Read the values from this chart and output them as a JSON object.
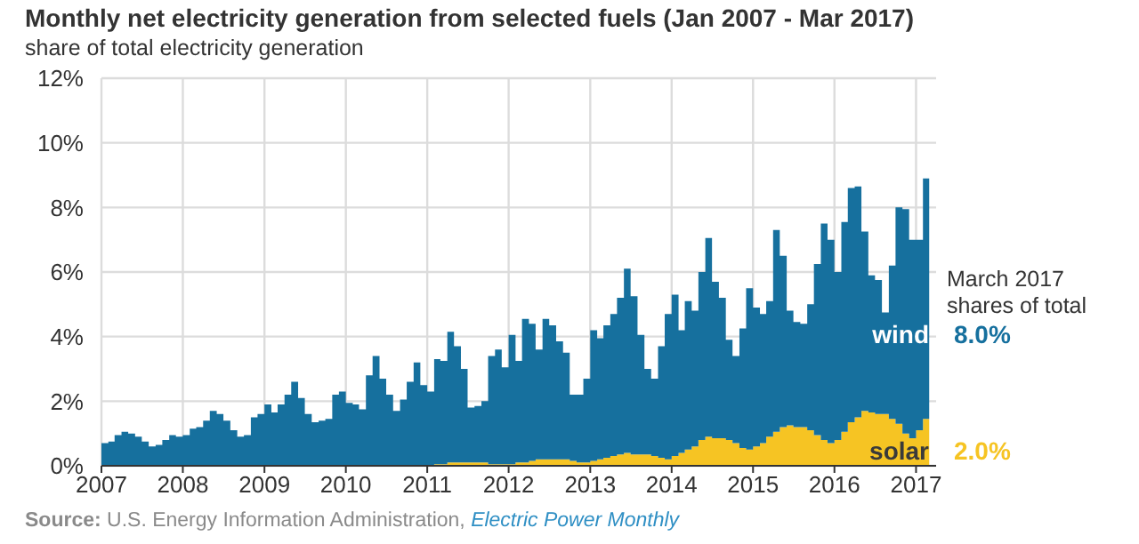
{
  "chart_data": {
    "type": "area",
    "stacked": true,
    "title": "Monthly net electricity generation from selected fuels (Jan 2007 - Mar 2017)",
    "subtitle": "share of total electricity generation",
    "x": [
      "2007-01",
      "2007-02",
      "2007-03",
      "2007-04",
      "2007-05",
      "2007-06",
      "2007-07",
      "2007-08",
      "2007-09",
      "2007-10",
      "2007-11",
      "2007-12",
      "2008-01",
      "2008-02",
      "2008-03",
      "2008-04",
      "2008-05",
      "2008-06",
      "2008-07",
      "2008-08",
      "2008-09",
      "2008-10",
      "2008-11",
      "2008-12",
      "2009-01",
      "2009-02",
      "2009-03",
      "2009-04",
      "2009-05",
      "2009-06",
      "2009-07",
      "2009-08",
      "2009-09",
      "2009-10",
      "2009-11",
      "2009-12",
      "2010-01",
      "2010-02",
      "2010-03",
      "2010-04",
      "2010-05",
      "2010-06",
      "2010-07",
      "2010-08",
      "2010-09",
      "2010-10",
      "2010-11",
      "2010-12",
      "2011-01",
      "2011-02",
      "2011-03",
      "2011-04",
      "2011-05",
      "2011-06",
      "2011-07",
      "2011-08",
      "2011-09",
      "2011-10",
      "2011-11",
      "2011-12",
      "2012-01",
      "2012-02",
      "2012-03",
      "2012-04",
      "2012-05",
      "2012-06",
      "2012-07",
      "2012-08",
      "2012-09",
      "2012-10",
      "2012-11",
      "2012-12",
      "2013-01",
      "2013-02",
      "2013-03",
      "2013-04",
      "2013-05",
      "2013-06",
      "2013-07",
      "2013-08",
      "2013-09",
      "2013-10",
      "2013-11",
      "2013-12",
      "2014-01",
      "2014-02",
      "2014-03",
      "2014-04",
      "2014-05",
      "2014-06",
      "2014-07",
      "2014-08",
      "2014-09",
      "2014-10",
      "2014-11",
      "2014-12",
      "2015-01",
      "2015-02",
      "2015-03",
      "2015-04",
      "2015-05",
      "2015-06",
      "2015-07",
      "2015-08",
      "2015-09",
      "2015-10",
      "2015-11",
      "2015-12",
      "2016-01",
      "2016-02",
      "2016-03",
      "2016-04",
      "2016-05",
      "2016-06",
      "2016-07",
      "2016-08",
      "2016-09",
      "2016-10",
      "2016-11",
      "2016-12",
      "2017-01",
      "2017-02",
      "2017-03"
    ],
    "series": [
      {
        "name": "solar",
        "color": "#f6c423",
        "values": [
          0,
          0,
          0,
          0,
          0,
          0,
          0,
          0,
          0,
          0,
          0,
          0,
          0,
          0,
          0,
          0,
          0,
          0,
          0,
          0,
          0,
          0,
          0,
          0,
          0,
          0,
          0,
          0,
          0,
          0,
          0,
          0,
          0,
          0,
          0,
          0,
          0,
          0,
          0,
          0,
          0,
          0,
          0,
          0,
          0,
          0,
          0,
          0,
          0,
          0.05,
          0.05,
          0.1,
          0.1,
          0.1,
          0.1,
          0.1,
          0.1,
          0.05,
          0.05,
          0.05,
          0.05,
          0.1,
          0.1,
          0.15,
          0.2,
          0.2,
          0.2,
          0.2,
          0.2,
          0.15,
          0.1,
          0.1,
          0.15,
          0.2,
          0.25,
          0.3,
          0.35,
          0.4,
          0.35,
          0.35,
          0.35,
          0.3,
          0.25,
          0.2,
          0.3,
          0.4,
          0.5,
          0.6,
          0.8,
          0.9,
          0.85,
          0.85,
          0.8,
          0.7,
          0.55,
          0.5,
          0.6,
          0.7,
          0.9,
          1.05,
          1.2,
          1.25,
          1.2,
          1.2,
          1.1,
          0.95,
          0.8,
          0.7,
          0.8,
          1.05,
          1.35,
          1.5,
          1.7,
          1.65,
          1.6,
          1.6,
          1.45,
          1.3,
          1,
          0.85,
          1.1,
          1.45,
          2
        ]
      },
      {
        "name": "wind",
        "color": "#16709e",
        "values": [
          0.7,
          0.75,
          0.95,
          1.05,
          1,
          0.9,
          0.75,
          0.6,
          0.65,
          0.8,
          0.95,
          0.9,
          0.95,
          1.15,
          1.2,
          1.4,
          1.7,
          1.6,
          1.4,
          1.1,
          0.9,
          0.95,
          1.5,
          1.6,
          1.9,
          1.65,
          1.9,
          2.2,
          2.6,
          2.1,
          1.6,
          1.35,
          1.4,
          1.45,
          2.2,
          2.3,
          1.95,
          1.9,
          1.75,
          2.8,
          3.4,
          2.7,
          2.2,
          1.7,
          2.05,
          2.6,
          3.2,
          2.5,
          2.3,
          3.25,
          3.2,
          4.05,
          3.6,
          2.9,
          1.7,
          1.75,
          1.9,
          3.35,
          3.55,
          3,
          4,
          3.15,
          4.45,
          4.25,
          3.4,
          4.35,
          4.15,
          3.65,
          3.3,
          2.05,
          2.1,
          2.6,
          4.05,
          3.75,
          4.1,
          4.4,
          4.85,
          5.7,
          4.9,
          3.7,
          2.65,
          2.4,
          3.45,
          4.5,
          5,
          3.8,
          4.6,
          4.2,
          5.2,
          6.15,
          4.85,
          4.35,
          3.1,
          2.7,
          3.7,
          5,
          4.3,
          4,
          4.2,
          6.25,
          5.3,
          3.55,
          3.25,
          3.2,
          3.9,
          5.3,
          6.7,
          6.3,
          5.2,
          6.5,
          7.25,
          7.15,
          5.55,
          4.25,
          4.15,
          3.15,
          4.75,
          6.7,
          6.95,
          6.15,
          5.9,
          7.45,
          8
        ]
      }
    ],
    "xlim": [
      "2007-01",
      "2017-04"
    ],
    "xticks": [
      "2007",
      "2008",
      "2009",
      "2010",
      "2011",
      "2012",
      "2013",
      "2014",
      "2015",
      "2016",
      "2017"
    ],
    "ylim": [
      0,
      12
    ],
    "yticks": [
      {
        "value": 0,
        "label": "0%"
      },
      {
        "value": 2,
        "label": "2%"
      },
      {
        "value": 4,
        "label": "4%"
      },
      {
        "value": 6,
        "label": "6%"
      },
      {
        "value": 8,
        "label": "8%"
      },
      {
        "value": 10,
        "label": "10%"
      },
      {
        "value": 12,
        "label": "12%"
      }
    ],
    "grid": true,
    "legend": false,
    "annotations": [
      "March 2017 shares of total",
      "2.0%",
      "8.0%",
      "Source: U.S. Energy Information Administration, Electric Power Monthly"
    ]
  }
}
